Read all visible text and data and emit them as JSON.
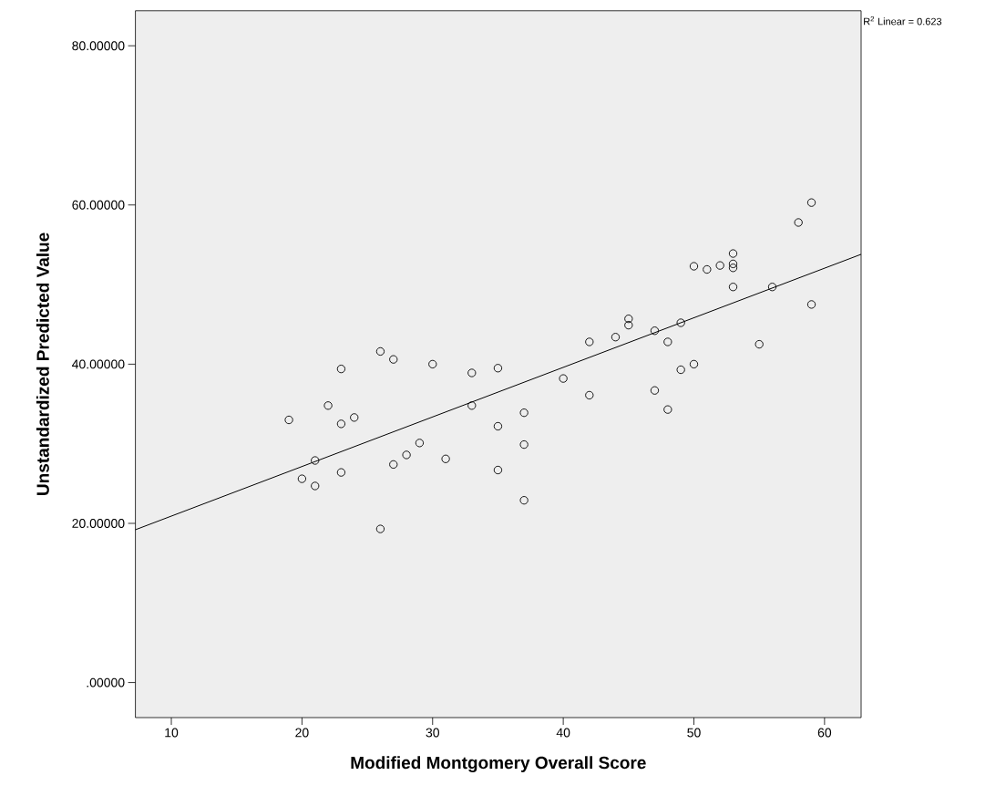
{
  "chart_data": {
    "type": "scatter",
    "xlabel": "Modified Montgomery Overall Score",
    "ylabel": "Unstandardized Predicted Value",
    "annotations": [
      "R$^{2}$ Linear = 0.623"
    ],
    "xlim": [
      7.25,
      62.8
    ],
    "ylim": [
      -4.4,
      84.4
    ],
    "xticks": [
      10,
      20,
      30,
      40,
      50,
      60
    ],
    "yticks": [
      {
        "value": 0,
        "label": ".00000"
      },
      {
        "value": 20,
        "label": "20.00000"
      },
      {
        "value": 40,
        "label": "40.00000"
      },
      {
        "value": 60,
        "label": "60.00000"
      },
      {
        "value": 80,
        "label": "80.00000"
      }
    ],
    "marker": "circle",
    "grid": false,
    "series": [
      {
        "color": "#000000",
        "x": [
          19,
          20,
          21,
          21,
          22,
          23,
          23,
          23,
          24,
          26,
          26,
          27,
          27,
          28,
          29,
          30,
          31,
          33,
          33,
          35,
          35,
          35,
          37,
          37,
          37,
          40,
          42,
          42,
          44,
          45,
          45,
          47,
          47,
          48,
          48,
          49,
          49,
          50,
          50,
          51,
          52,
          53,
          53,
          53,
          53,
          55,
          56,
          58,
          59,
          59
        ],
        "values": [
          33.0,
          25.6,
          27.9,
          24.7,
          34.8,
          39.4,
          32.5,
          26.4,
          33.3,
          41.6,
          19.3,
          40.6,
          27.4,
          28.6,
          30.1,
          40.0,
          28.1,
          38.9,
          34.8,
          39.5,
          32.2,
          26.7,
          33.9,
          29.9,
          22.9,
          38.2,
          42.8,
          36.1,
          43.4,
          45.7,
          44.9,
          44.2,
          36.7,
          42.8,
          34.3,
          45.2,
          39.3,
          52.3,
          40.0,
          51.9,
          52.4,
          53.9,
          52.6,
          52.1,
          49.7,
          42.5,
          49.7,
          57.8,
          60.3,
          47.5
        ]
      },
      {
        "type": "line",
        "color": "#000000",
        "marker": "none",
        "line_style": "solid",
        "x": [
          7.25,
          62.8
        ],
        "values": [
          19.2,
          53.8
        ]
      }
    ]
  }
}
